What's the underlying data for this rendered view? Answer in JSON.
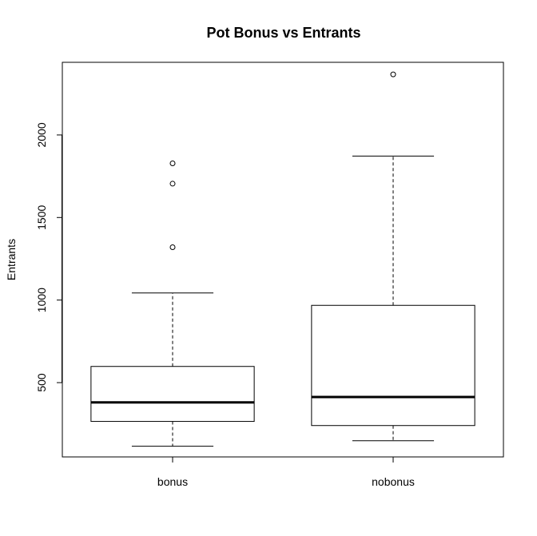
{
  "chart_data": {
    "type": "box",
    "title": "Pot Bonus vs Entrants",
    "xlabel": "",
    "ylabel": "Entrants",
    "ylim": [
      50,
      2440
    ],
    "yticks": [
      500,
      1000,
      1500,
      2000
    ],
    "grid": false,
    "categories": [
      "bonus",
      "nobonus"
    ],
    "boxes": [
      {
        "name": "bonus",
        "whisker_low": 115,
        "q1": 265,
        "median": 380,
        "q3": 598,
        "whisker_high": 1043,
        "outliers": [
          1320,
          1705,
          1828
        ]
      },
      {
        "name": "nobonus",
        "whisker_low": 148,
        "q1": 240,
        "median": 413,
        "q3": 968,
        "whisker_high": 1872,
        "outliers": [
          2367
        ]
      }
    ]
  }
}
